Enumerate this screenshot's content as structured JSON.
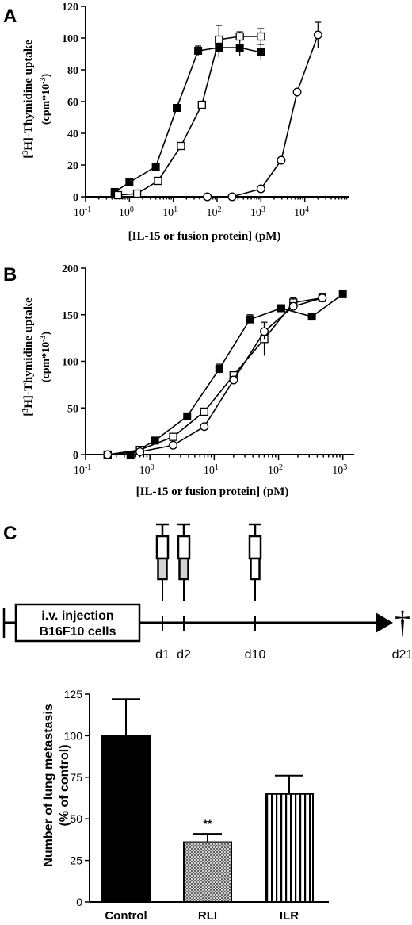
{
  "panels": {
    "A": "A",
    "B": "B",
    "C": "C"
  },
  "chart_data": [
    {
      "id": "A",
      "type": "line",
      "xscale": "log",
      "xlabel": "[IL-15 or fusion protein] (pM)",
      "ylabel_line1": "[3H]-Thymidine uptake",
      "ylabel_line2": "(cpm*10-3)",
      "ylim": [
        0,
        120
      ],
      "yticks": [
        0,
        20,
        40,
        60,
        80,
        100,
        120
      ],
      "xlim": [
        0.1,
        100000
      ],
      "xticks": [
        {
          "value": 0.1,
          "base": "10",
          "exp": "-1"
        },
        {
          "value": 1,
          "base": "10",
          "exp": "0"
        },
        {
          "value": 10,
          "base": "10",
          "exp": "1"
        },
        {
          "value": 100,
          "base": "10",
          "exp": "2"
        },
        {
          "value": 1000,
          "base": "10",
          "exp": "3"
        },
        {
          "value": 10000,
          "base": "10",
          "exp": "4"
        }
      ],
      "series": [
        {
          "marker": "filled-square",
          "x": [
            0.46,
            1.0,
            4.0,
            12,
            37,
            110,
            330,
            1000
          ],
          "y": [
            3,
            9,
            19,
            56,
            92,
            94,
            94,
            91
          ],
          "err": [
            2,
            2,
            1,
            1,
            3,
            6,
            5,
            5
          ]
        },
        {
          "marker": "open-square",
          "x": [
            0.55,
            1.5,
            4.5,
            15,
            45,
            110,
            330,
            1000
          ],
          "y": [
            1,
            2,
            10,
            32,
            58,
            99,
            101,
            101
          ],
          "err": [
            0,
            0,
            1,
            1,
            1,
            9,
            3,
            5
          ]
        },
        {
          "marker": "open-circle",
          "x": [
            60,
            220,
            1000,
            2900,
            6700,
            20000
          ],
          "y": [
            0,
            0,
            5,
            23,
            66,
            102
          ],
          "err": [
            0,
            0,
            0,
            0,
            0,
            8
          ]
        }
      ]
    },
    {
      "id": "B",
      "type": "line",
      "xscale": "log",
      "xlabel": "[IL-15 or fusion protein] (pM)",
      "ylabel_line1": "[3H]-Thymidine uptake",
      "ylabel_line2": "(cpm*10-3)",
      "ylim": [
        0,
        200
      ],
      "yticks": [
        0,
        50,
        100,
        150,
        200
      ],
      "xlim": [
        0.1,
        1500
      ],
      "xticks": [
        {
          "value": 0.1,
          "base": "10",
          "exp": "-1"
        },
        {
          "value": 1,
          "base": "10",
          "exp": "0"
        },
        {
          "value": 10,
          "base": "10",
          "exp": "1"
        },
        {
          "value": 100,
          "base": "10",
          "exp": "2"
        },
        {
          "value": 1000,
          "base": "10",
          "exp": "3"
        }
      ],
      "series": [
        {
          "marker": "filled-square",
          "x": [
            0.22,
            0.5,
            1.2,
            3.8,
            12,
            36,
            110,
            330,
            1000
          ],
          "y": [
            0,
            0,
            15,
            41,
            92,
            145,
            157,
            148,
            172
          ],
          "err": [
            0,
            0,
            0,
            0,
            5,
            5,
            0,
            0,
            0
          ]
        },
        {
          "marker": "open-square",
          "x": [
            0.22,
            0.7,
            2.3,
            7.0,
            20,
            60,
            170,
            480
          ],
          "y": [
            0,
            5,
            19,
            46,
            85,
            124,
            163,
            168
          ],
          "err": [
            0,
            0,
            0,
            0,
            0,
            18,
            5,
            5
          ]
        },
        {
          "marker": "open-circle",
          "x": [
            0.22,
            0.7,
            2.3,
            7.0,
            20,
            60,
            170,
            480
          ],
          "y": [
            0,
            3,
            10,
            30,
            80,
            132,
            159,
            168
          ],
          "err": [
            0,
            0,
            0,
            0,
            0,
            8,
            4,
            5
          ]
        }
      ]
    },
    {
      "id": "C-bar",
      "type": "bar",
      "ylabel_line1": "Number of lung metastasis",
      "ylabel_line2": "(% of control)",
      "ylim": [
        0,
        125
      ],
      "yticks": [
        0,
        25,
        50,
        75,
        100,
        125
      ],
      "categories": [
        "Control",
        "RLI",
        "ILR"
      ],
      "values": [
        100,
        36,
        65
      ],
      "errors": [
        22,
        5,
        11
      ],
      "annotations": [
        "",
        "**",
        ""
      ]
    }
  ],
  "timeline": {
    "box_line1": "i.v. injection",
    "box_line2": "B16F10 cells",
    "days": [
      "d1",
      "d2",
      "d10",
      "d21"
    ],
    "death_symbol": "†"
  }
}
